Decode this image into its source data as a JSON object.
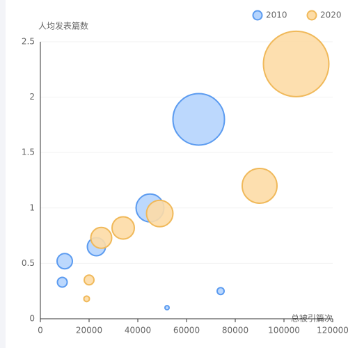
{
  "chart_data": {
    "type": "scatter",
    "x_label": "总被引篇次",
    "y_label": "人均发表篇数",
    "xlim": [
      0,
      120000
    ],
    "xticks": [
      0,
      20000,
      40000,
      60000,
      80000,
      100000,
      120000
    ],
    "ylim": [
      0,
      2.5
    ],
    "yticks": [
      0,
      0.5,
      1,
      1.5,
      2,
      2.5
    ],
    "grid": true,
    "legend": "top-right",
    "series": [
      {
        "name": "2010",
        "color": "#5b9bf0",
        "fill": "#b5d4fd",
        "x": [
          65000,
          45000,
          23000,
          10000,
          9000,
          74000,
          52000
        ],
        "values": [
          1.8,
          1.0,
          0.65,
          0.52,
          0.33,
          0.25,
          0.1
        ],
        "sizes": [
          74,
          40,
          26,
          22,
          14,
          10,
          6
        ]
      },
      {
        "name": "2020",
        "color": "#f0b95a",
        "fill": "#fddca6",
        "x": [
          105000,
          90000,
          49000,
          34000,
          25000,
          20000,
          19000
        ],
        "values": [
          2.3,
          1.2,
          0.95,
          0.82,
          0.73,
          0.35,
          0.18
        ],
        "sizes": [
          94,
          50,
          38,
          32,
          30,
          14,
          8
        ]
      }
    ]
  }
}
